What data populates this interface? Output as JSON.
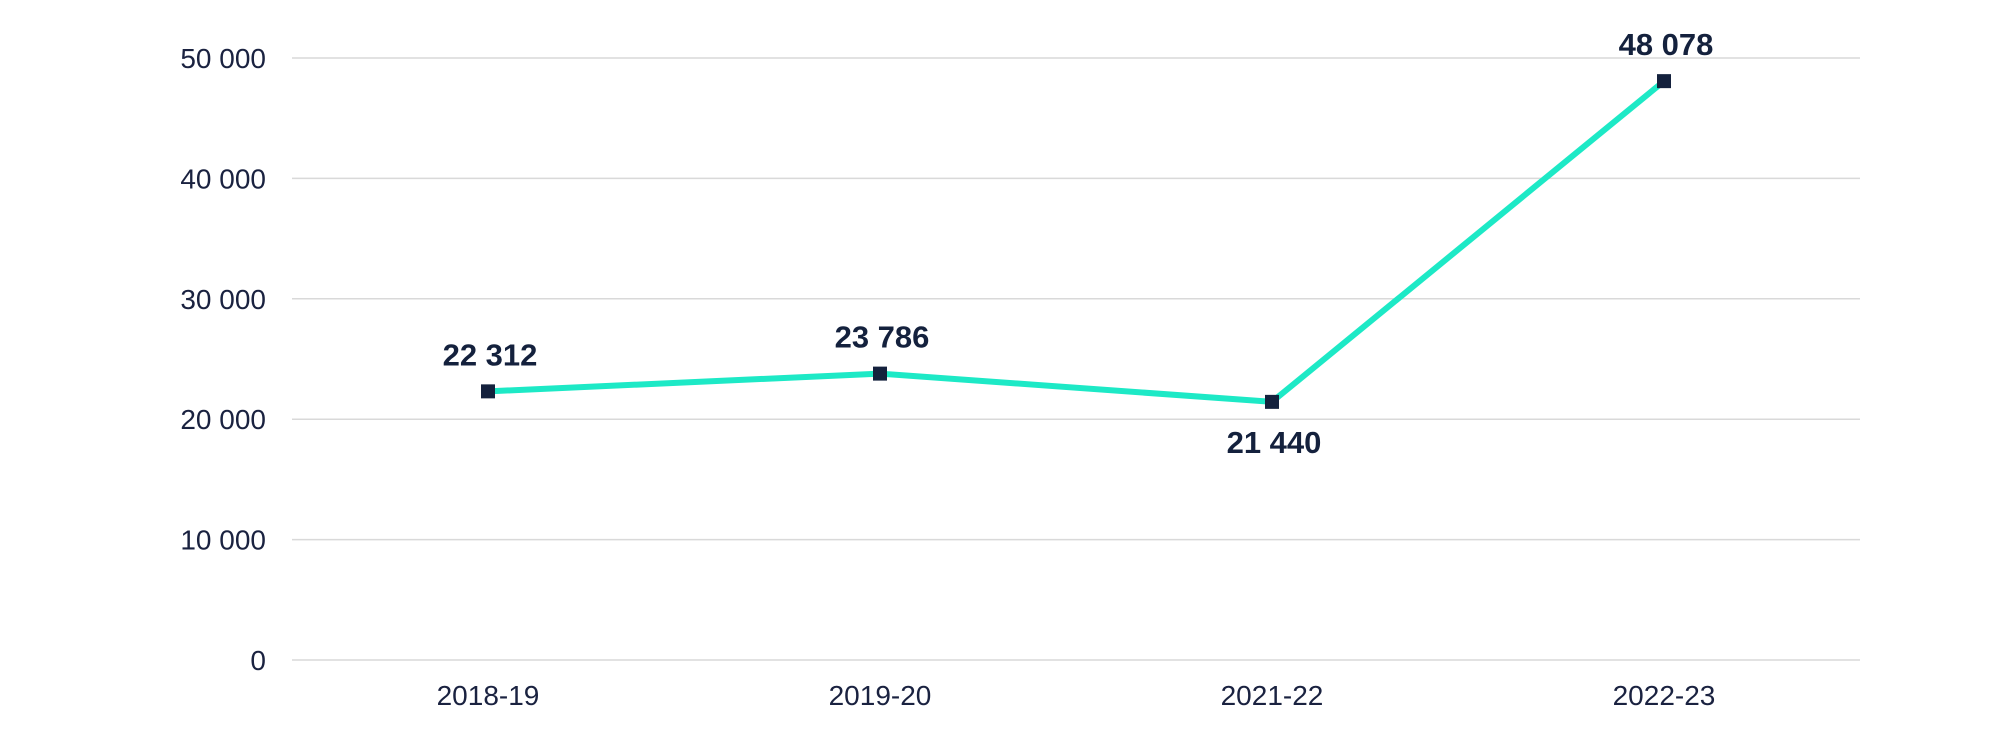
{
  "chart_data": {
    "type": "line",
    "categories": [
      "2018-19",
      "2019-20",
      "2021-22",
      "2022-23"
    ],
    "series": [
      {
        "values": [
          22312,
          23786,
          21440,
          48078
        ],
        "value_labels": [
          "22 312",
          "23 786",
          "21 440",
          "48 078"
        ]
      }
    ],
    "ylim": [
      0,
      50000
    ],
    "y_ticks": [
      0,
      10000,
      20000,
      30000,
      40000,
      50000
    ],
    "y_tick_labels": [
      "0",
      "10 000",
      "20 000",
      "30 000",
      "40 000",
      "50 000"
    ],
    "grid": true,
    "legend": "none",
    "colors": {
      "line": "#1de9c6",
      "marker": "#14213d",
      "text": "#14213d",
      "grid": "#d9d9d9"
    }
  }
}
